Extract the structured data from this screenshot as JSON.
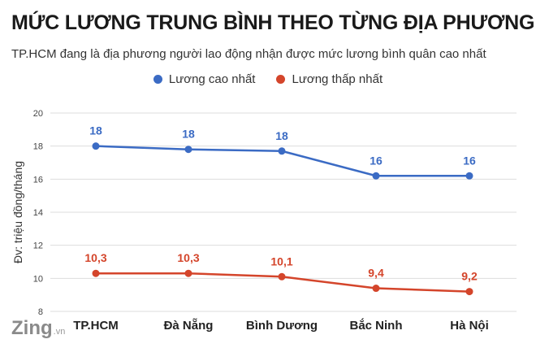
{
  "header": {
    "title": "MỨC LƯƠNG TRUNG BÌNH THEO TỪNG ĐỊA PHƯƠNG",
    "subtitle": "TP.HCM đang là địa phương người lao động nhận được mức lương bình quân cao nhất"
  },
  "logo": {
    "text": "Zing",
    "suffix": ".vn"
  },
  "colors": {
    "high": "#3b6bc4",
    "low": "#d4452b",
    "grid": "#dddddd",
    "axis_text": "#333333"
  },
  "chart_data": {
    "type": "line",
    "title": "MỨC LƯƠNG TRUNG BÌNH THEO TỪNG ĐỊA PHƯƠNG",
    "subtitle": "TP.HCM đang là địa phương người lao động nhận được mức lương bình quân cao nhất",
    "xlabel": "",
    "ylabel": "Đv: triệu đồng/tháng",
    "ylim": [
      8,
      20
    ],
    "yticks": [
      8,
      10,
      12,
      14,
      16,
      18,
      20
    ],
    "grid": true,
    "legend_position": "top-center",
    "categories": [
      "TP.HCM",
      "Đà Nẵng",
      "Bình Dương",
      "Bắc Ninh",
      "Hà Nội"
    ],
    "series": [
      {
        "name": "Lương cao nhất",
        "color": "#3b6bc4",
        "values": [
          18.0,
          17.8,
          17.7,
          16.2,
          16.2
        ],
        "labels": [
          "18",
          "18",
          "18",
          "16",
          "16"
        ]
      },
      {
        "name": "Lương thấp nhất",
        "color": "#d4452b",
        "values": [
          10.3,
          10.3,
          10.1,
          9.4,
          9.2
        ],
        "labels": [
          "10,3",
          "10,3",
          "10,1",
          "9,4",
          "9,2"
        ]
      }
    ]
  }
}
